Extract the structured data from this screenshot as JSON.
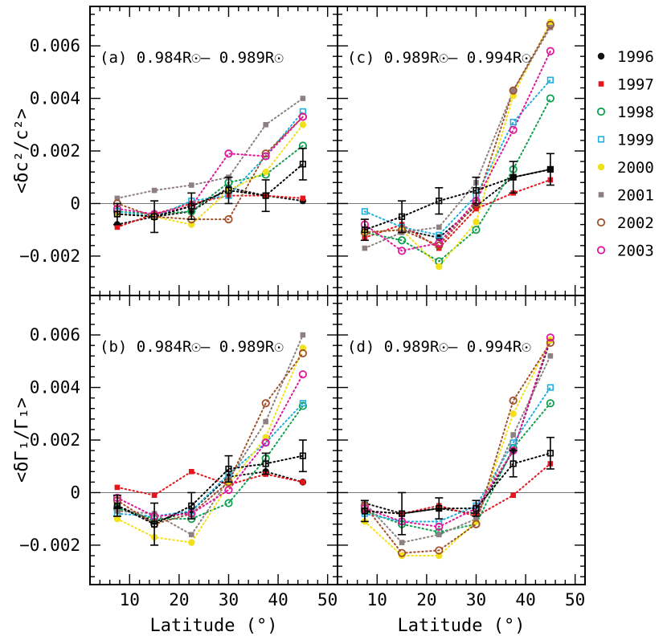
{
  "figure": {
    "x_axis_title": "Latitude (°)",
    "y_axis_title_top": "<δc²/c²>",
    "y_axis_title_bottom": "<δΓ₁/Γ₁>"
  },
  "legend": [
    {
      "year": "1996",
      "color": "#111111",
      "marker": "filled-circle"
    },
    {
      "year": "1997",
      "color": "#e8141c",
      "marker": "filled-square"
    },
    {
      "year": "1998",
      "color": "#12a050",
      "marker": "open-circle"
    },
    {
      "year": "1999",
      "color": "#22aee0",
      "marker": "open-square"
    },
    {
      "year": "2000",
      "color": "#f2e018",
      "marker": "filled-circle"
    },
    {
      "year": "2001",
      "color": "#8e8080",
      "marker": "filled-square"
    },
    {
      "year": "2002",
      "color": "#a0522d",
      "marker": "open-circle"
    },
    {
      "year": "2003",
      "color": "#e0189a",
      "marker": "open-circle"
    }
  ],
  "chart_data": [
    {
      "type": "scatter",
      "panel": "a",
      "title": "(a) 0.984R☉– 0.989R☉",
      "xlabel": "Latitude (°)",
      "ylabel": "<δc²/c²>",
      "xlim": [
        2,
        52
      ],
      "ylim": [
        -0.0035,
        0.0075
      ],
      "xticks": [
        10,
        20,
        30,
        40,
        50
      ],
      "yticks": [
        -0.002,
        0,
        0.002,
        0.004,
        0.006
      ],
      "ytick_labels": [
        "−0.002",
        "0",
        "0.002",
        "0.004",
        "0.006"
      ],
      "x": [
        7.5,
        15,
        22.5,
        30,
        37.5,
        45
      ],
      "series": [
        {
          "name": "1996",
          "values": [
            -0.0008,
            -0.0005,
            -0.0003,
            0.0006,
            0.0003,
            0.0001
          ]
        },
        {
          "name": "1997",
          "values": [
            -0.0009,
            -0.0004,
            0.0,
            0.0003,
            0.0003,
            0.0002
          ]
        },
        {
          "name": "1998",
          "values": [
            -0.0003,
            -0.0004,
            -0.0003,
            0.0008,
            0.0011,
            0.0022
          ]
        },
        {
          "name": "1999",
          "values": [
            -0.0003,
            -0.0005,
            0.0001,
            0.0003,
            0.0018,
            0.0035
          ]
        },
        {
          "name": "2000",
          "values": [
            -0.0004,
            -0.0005,
            -0.0008,
            0.0005,
            0.0012,
            0.003
          ]
        },
        {
          "name": "2001",
          "values": [
            0.0002,
            0.0005,
            0.0007,
            0.001,
            0.003,
            0.004
          ]
        },
        {
          "name": "2002",
          "values": [
            0.0,
            -0.0005,
            -0.0006,
            -0.0006,
            0.0019,
            0.0033
          ]
        },
        {
          "name": "2003",
          "values": [
            -0.0002,
            -0.0004,
            -0.0001,
            0.0019,
            0.0018,
            0.0033
          ]
        }
      ],
      "mean": {
        "values": [
          -0.0004,
          -0.0005,
          -0.0001,
          0.0005,
          0.0003,
          0.0015
        ],
        "errors": [
          0.0004,
          0.0006,
          0.0005,
          0.0005,
          0.0006,
          0.0006
        ]
      }
    },
    {
      "type": "scatter",
      "panel": "c",
      "title": "(c) 0.989R☉– 0.994R☉",
      "xlabel": "Latitude (°)",
      "ylabel": "<δc²/c²>",
      "xlim": [
        2,
        52
      ],
      "ylim": [
        -0.0035,
        0.0075
      ],
      "xticks": [
        10,
        20,
        30,
        40,
        50
      ],
      "yticks": [
        -0.002,
        0,
        0.002,
        0.004,
        0.006
      ],
      "ytick_labels": [
        "−0.002",
        "0",
        "0.002",
        "0.004",
        "0.006"
      ],
      "x": [
        7.5,
        15,
        22.5,
        30,
        37.5,
        45
      ],
      "series": [
        {
          "name": "1996",
          "values": [
            -0.0011,
            -0.001,
            -0.0013,
            -0.0001,
            0.001,
            0.0013
          ]
        },
        {
          "name": "1997",
          "values": [
            -0.0013,
            -0.0008,
            -0.0017,
            -0.0002,
            0.0004,
            0.0009
          ]
        },
        {
          "name": "1998",
          "values": [
            -0.0011,
            -0.0014,
            -0.0022,
            -0.001,
            0.0013,
            0.004
          ]
        },
        {
          "name": "1999",
          "values": [
            -0.0003,
            -0.0009,
            -0.0012,
            0.0003,
            0.0031,
            0.0047
          ]
        },
        {
          "name": "2000",
          "values": [
            -0.0011,
            -0.001,
            -0.0024,
            -0.0007,
            0.0041,
            0.0069
          ]
        },
        {
          "name": "2001",
          "values": [
            -0.0017,
            -0.0011,
            -0.0009,
            0.0008,
            0.0043,
            0.0067
          ]
        },
        {
          "name": "2002",
          "values": [
            -0.0011,
            -0.001,
            -0.0016,
            0.0,
            0.0043,
            0.0068
          ]
        },
        {
          "name": "2003",
          "values": [
            -0.0008,
            -0.0018,
            -0.0015,
            0.0001,
            0.0028,
            0.0058
          ]
        }
      ],
      "mean": {
        "values": [
          -0.001,
          -0.0005,
          0.0001,
          0.0005,
          0.001,
          0.0013
        ],
        "errors": [
          0.0004,
          0.0006,
          0.0005,
          0.0005,
          0.0006,
          0.0006
        ]
      }
    },
    {
      "type": "scatter",
      "panel": "b",
      "title": "(b) 0.984R☉– 0.989R☉",
      "xlabel": "Latitude (°)",
      "ylabel": "<δΓ₁/Γ₁>",
      "xlim": [
        2,
        52
      ],
      "ylim": [
        -0.0035,
        0.0075
      ],
      "xticks": [
        10,
        20,
        30,
        40,
        50
      ],
      "yticks": [
        -0.002,
        0,
        0.002,
        0.004,
        0.006
      ],
      "ytick_labels": [
        "−0.002",
        "0",
        "0.002",
        "0.004",
        "0.006"
      ],
      "x": [
        7.5,
        15,
        22.5,
        30,
        37.5,
        45
      ],
      "series": [
        {
          "name": "1996",
          "values": [
            -0.0005,
            -0.0011,
            -0.0007,
            0.0006,
            0.0008,
            0.0004
          ]
        },
        {
          "name": "1997",
          "values": [
            0.0002,
            -0.0001,
            0.0008,
            0.0003,
            0.0007,
            0.0004
          ]
        },
        {
          "name": "1998",
          "values": [
            -0.0006,
            -0.001,
            -0.001,
            -0.0004,
            0.0013,
            0.0033
          ]
        },
        {
          "name": "1999",
          "values": [
            -0.0008,
            -0.0009,
            -0.0007,
            0.0007,
            0.0019,
            0.0034
          ]
        },
        {
          "name": "2000",
          "values": [
            -0.001,
            -0.0017,
            -0.0019,
            0.0003,
            0.0021,
            0.0055
          ]
        },
        {
          "name": "2001",
          "values": [
            -0.0007,
            -0.0008,
            -0.0016,
            0.0005,
            0.0027,
            0.006
          ]
        },
        {
          "name": "2002",
          "values": [
            -0.0003,
            -0.0012,
            -0.0008,
            0.0004,
            0.0034,
            0.0053
          ]
        },
        {
          "name": "2003",
          "values": [
            -0.0002,
            -0.0009,
            -0.0008,
            0.0001,
            0.0019,
            0.0045
          ]
        }
      ],
      "mean": {
        "values": [
          -0.0005,
          -0.0012,
          -0.0005,
          0.0009,
          0.0011,
          0.0014
        ],
        "errors": [
          0.0004,
          0.0008,
          0.0005,
          0.0005,
          0.0004,
          0.0006
        ]
      }
    },
    {
      "type": "scatter",
      "panel": "d",
      "title": "(d) 0.989R☉– 0.994R☉",
      "xlabel": "Latitude (°)",
      "ylabel": "<δΓ₁/Γ₁>",
      "xlim": [
        2,
        52
      ],
      "ylim": [
        -0.0035,
        0.0075
      ],
      "xticks": [
        10,
        20,
        30,
        40,
        50
      ],
      "yticks": [
        -0.002,
        0,
        0.002,
        0.004,
        0.006
      ],
      "ytick_labels": [
        "−0.002",
        "0",
        "0.002",
        "0.004",
        "0.006"
      ],
      "x": [
        7.5,
        15,
        22.5,
        30,
        37.5,
        45
      ],
      "series": [
        {
          "name": "1996",
          "values": [
            -0.0004,
            -0.0008,
            -0.0006,
            -0.0008,
            0.0016,
            0.0058
          ]
        },
        {
          "name": "1997",
          "values": [
            -0.0007,
            -0.0008,
            -0.0005,
            -0.0009,
            -0.0001,
            0.0011
          ]
        },
        {
          "name": "1998",
          "values": [
            -0.0007,
            -0.0012,
            -0.0015,
            -0.0012,
            0.0017,
            0.0034
          ]
        },
        {
          "name": "1999",
          "values": [
            -0.0008,
            -0.0011,
            -0.0011,
            -0.0005,
            0.0019,
            0.004
          ]
        },
        {
          "name": "2000",
          "values": [
            -0.0011,
            -0.0024,
            -0.0024,
            -0.0011,
            0.003,
            0.0058
          ]
        },
        {
          "name": "2001",
          "values": [
            -0.0004,
            -0.0019,
            -0.0016,
            -0.001,
            0.0022,
            0.0052
          ]
        },
        {
          "name": "2002",
          "values": [
            -0.0005,
            -0.0023,
            -0.0022,
            -0.0012,
            0.0035,
            0.0057
          ]
        },
        {
          "name": "2003",
          "values": [
            -0.0006,
            -0.0011,
            -0.0013,
            -0.0006,
            0.0016,
            0.0059
          ]
        }
      ],
      "mean": {
        "values": [
          -0.0007,
          -0.0008,
          -0.0006,
          -0.0006,
          0.0011,
          0.0015
        ],
        "errors": [
          0.0004,
          0.0008,
          0.0004,
          0.0003,
          0.0005,
          0.0006
        ]
      }
    }
  ]
}
